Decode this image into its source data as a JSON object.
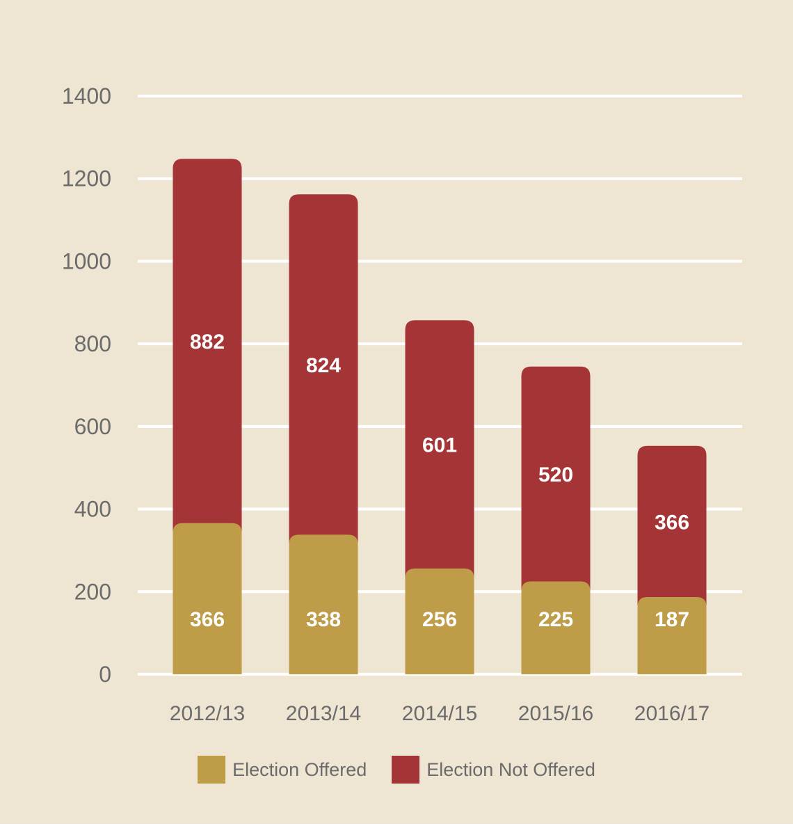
{
  "chart_data": {
    "type": "bar",
    "stacked": true,
    "categories": [
      "2012/13",
      "2013/14",
      "2014/15",
      "2015/16",
      "2016/17"
    ],
    "series": [
      {
        "name": "Election Offered",
        "values": [
          366,
          338,
          256,
          225,
          187
        ],
        "color": "#BE9C48"
      },
      {
        "name": "Election Not Offered",
        "values": [
          882,
          824,
          601,
          520,
          366
        ],
        "color": "#A53436"
      }
    ],
    "ylim": [
      0,
      1400
    ],
    "yticks": [
      0,
      200,
      400,
      600,
      800,
      1000,
      1200,
      1400
    ],
    "grid": true,
    "legend_position": "bottom",
    "background_color": "#EEE6D2",
    "gridline_color": "#FFFFFF"
  }
}
